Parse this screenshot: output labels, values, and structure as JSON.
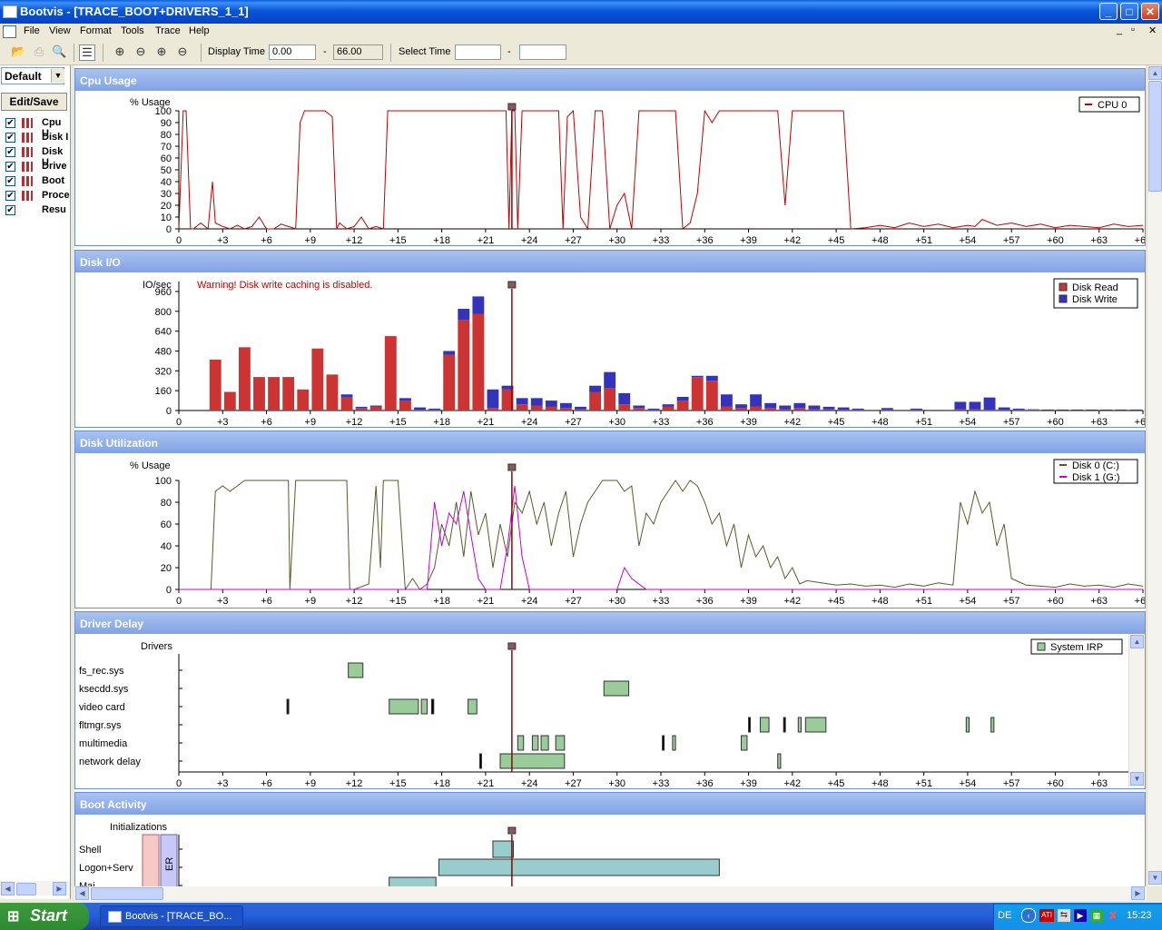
{
  "window": {
    "title": "Bootvis - [TRACE_BOOT+DRIVERS_1_1]",
    "min": "_",
    "max": "□",
    "close": "✕"
  },
  "menu": [
    "File",
    "View",
    "Format",
    "Tools",
    "Trace",
    "Help"
  ],
  "toolbar": {
    "display_time_label": "Display Time",
    "display_time_start": "0.00",
    "display_time_sep": "-",
    "display_time_end": "66.00",
    "select_time_label": "Select Time",
    "select_time_start": "",
    "select_time_sep": "-",
    "select_time_end": ""
  },
  "left": {
    "view_select": "Default",
    "edit_save": "Edit/Save",
    "items": [
      {
        "label": "Cpu U",
        "checked": true
      },
      {
        "label": "Disk I",
        "checked": true
      },
      {
        "label": "Disk U",
        "checked": true
      },
      {
        "label": "Drive",
        "checked": true
      },
      {
        "label": "Boot",
        "checked": true
      },
      {
        "label": "Proce",
        "checked": true
      },
      {
        "label": "Resu",
        "checked": true
      }
    ]
  },
  "colors": {
    "cpu": "#C00000",
    "disk_read": "#CC3333",
    "disk_write": "#3333BB",
    "disk0": "#5A5A2A",
    "disk1": "#CC00CC",
    "driver_box": "#99CC99",
    "boot_box": "#99CCCC",
    "cursor": "#990000"
  },
  "x_ticks": [
    "0",
    "+3",
    "+6",
    "+9",
    "+12",
    "+15",
    "+18",
    "+21",
    "+24",
    "+27",
    "+30",
    "+33",
    "+36",
    "+39",
    "+42",
    "+45",
    "+48",
    "+51",
    "+54",
    "+57",
    "+60",
    "+63",
    "+66"
  ],
  "cursor_time": 22.8,
  "panels": {
    "cpu": {
      "title": "Cpu Usage",
      "ylabel": "% Usage",
      "legend": [
        "CPU 0"
      ],
      "y_ticks": [
        "0",
        "10",
        "20",
        "30",
        "40",
        "50",
        "60",
        "70",
        "80",
        "90",
        "100"
      ]
    },
    "diskio": {
      "title": "Disk I/O",
      "ylabel": "IO/sec",
      "warning": "Warning!  Disk write caching is disabled.",
      "legend": [
        "Disk Read",
        "Disk Write"
      ],
      "y_ticks": [
        "0",
        "160",
        "320",
        "480",
        "640",
        "800",
        "960"
      ]
    },
    "diskutil": {
      "title": "Disk Utilization",
      "ylabel": "% Usage",
      "legend": [
        "Disk 0 (C:)",
        "Disk 1 (G:)"
      ],
      "y_ticks": [
        "0",
        "20",
        "40",
        "60",
        "80",
        "100"
      ]
    },
    "driver": {
      "title": "Driver Delay",
      "ylabel": "Drivers",
      "legend": [
        "System IRP"
      ],
      "rows": [
        "fs_rec.sys",
        "ksecdd.sys",
        "video card",
        "fltmgr.sys",
        "multimedia",
        "network delay"
      ]
    },
    "boot": {
      "title": "Boot Activity",
      "ylabel": "Initializations",
      "rows": [
        "Shell",
        "Logon+Serv",
        "Mai"
      ],
      "er_label": "ER"
    }
  },
  "chart_data": [
    {
      "type": "line",
      "title": "Cpu Usage",
      "ylabel": "% Usage",
      "ylim": [
        0,
        100
      ],
      "xlim": [
        0,
        66
      ],
      "series": [
        {
          "name": "CPU 0",
          "x": [
            0,
            0.3,
            0.5,
            0.8,
            1,
            1.5,
            2,
            2.3,
            2.5,
            3,
            3.5,
            4,
            4.5,
            5,
            5.5,
            6,
            6.5,
            7,
            7.5,
            8,
            8.3,
            8.6,
            9,
            9.5,
            10,
            10.5,
            10.8,
            11,
            11.5,
            12,
            12.5,
            13,
            13.5,
            14,
            14.3,
            14.6,
            15,
            16,
            17,
            18,
            19,
            20,
            21,
            22,
            22.4,
            22.6,
            22.8,
            23,
            23.2,
            23.5,
            24,
            25,
            26,
            26.3,
            26.6,
            27,
            27.5,
            28,
            28.5,
            29,
            29.5,
            30,
            30.5,
            31,
            31.5,
            32,
            33,
            34,
            34.5,
            35,
            35.5,
            36,
            36.5,
            37,
            37.5,
            38,
            39,
            40,
            41,
            41.5,
            42,
            43,
            44,
            45,
            45.5,
            46,
            47,
            48,
            49,
            50,
            51,
            52,
            53,
            54,
            54.5,
            55,
            56,
            57,
            58,
            59,
            60,
            61,
            62,
            63,
            64,
            65,
            66
          ],
          "y": [
            0,
            100,
            100,
            0,
            0,
            5,
            0,
            40,
            5,
            2,
            0,
            3,
            0,
            2,
            10,
            0,
            0,
            4,
            2,
            0,
            90,
            100,
            100,
            100,
            100,
            95,
            0,
            5,
            0,
            2,
            10,
            0,
            2,
            0,
            100,
            100,
            100,
            100,
            100,
            100,
            100,
            100,
            100,
            100,
            100,
            0,
            100,
            100,
            0,
            100,
            100,
            100,
            100,
            0,
            95,
            100,
            10,
            0,
            100,
            100,
            0,
            20,
            30,
            0,
            100,
            100,
            100,
            100,
            0,
            5,
            30,
            100,
            90,
            100,
            100,
            100,
            100,
            100,
            100,
            20,
            100,
            100,
            100,
            100,
            100,
            0,
            1,
            3,
            1,
            5,
            2,
            4,
            1,
            3,
            2,
            8,
            3,
            5,
            2,
            4,
            1,
            3,
            2,
            1,
            4,
            2,
            3
          ]
        }
      ]
    },
    {
      "type": "bar",
      "title": "Disk I/O",
      "ylabel": "IO/sec",
      "ylim": [
        0,
        1040
      ],
      "xlim": [
        0,
        66
      ],
      "categories": [
        2.5,
        3.5,
        4.5,
        5.5,
        6.5,
        7.5,
        8.5,
        9.5,
        10.5,
        11.5,
        12.5,
        13.5,
        14.5,
        15.5,
        16.5,
        17.5,
        18.5,
        19.5,
        20.5,
        21.5,
        22.5,
        23.5,
        24.5,
        25.5,
        26.5,
        27.5,
        28.5,
        29.5,
        30.5,
        31.5,
        32.5,
        33.5,
        34.5,
        35.5,
        36.5,
        37.5,
        38.5,
        39.5,
        40.5,
        41.5,
        42.5,
        43.5,
        44.5,
        45.5,
        46.5,
        48.5,
        50.5,
        53.5,
        54.5,
        55.5,
        56.5,
        57.5,
        58.5,
        59.5,
        60.5,
        61.5,
        62.5,
        63.5,
        64.5,
        65.5
      ],
      "series": [
        {
          "name": "Disk Read",
          "values": [
            410,
            150,
            510,
            270,
            270,
            270,
            170,
            500,
            290,
            110,
            20,
            30,
            600,
            80,
            5,
            5,
            450,
            730,
            780,
            20,
            170,
            50,
            40,
            30,
            20,
            10,
            150,
            180,
            50,
            20,
            5,
            30,
            80,
            270,
            240,
            30,
            20,
            30,
            20,
            10,
            20,
            10,
            10,
            5,
            5,
            5,
            5,
            10,
            10,
            5,
            5,
            5,
            5,
            3,
            3,
            3,
            3,
            3,
            3,
            3
          ]
        },
        {
          "name": "Disk Write",
          "values": [
            0,
            0,
            0,
            0,
            0,
            0,
            0,
            0,
            0,
            20,
            10,
            10,
            0,
            20,
            20,
            10,
            30,
            90,
            140,
            150,
            30,
            50,
            60,
            50,
            40,
            20,
            50,
            130,
            90,
            20,
            10,
            20,
            30,
            10,
            40,
            100,
            30,
            100,
            40,
            30,
            40,
            30,
            20,
            20,
            10,
            15,
            10,
            60,
            60,
            100,
            20,
            10,
            5,
            5,
            5,
            5,
            5,
            5,
            5,
            5
          ]
        }
      ]
    },
    {
      "type": "line",
      "title": "Disk Utilization",
      "ylabel": "% Usage",
      "ylim": [
        0,
        100
      ],
      "xlim": [
        0,
        66
      ],
      "series": [
        {
          "name": "Disk 0 (C:)",
          "x": [
            0,
            2.2,
            2.5,
            3,
            3.5,
            4,
            4.5,
            5,
            6,
            7,
            7.5,
            7.6,
            8,
            9,
            10,
            11,
            11.5,
            11.7,
            12,
            13,
            13.5,
            13.8,
            14,
            14.2,
            14.5,
            15,
            15.5,
            16,
            16.5,
            17,
            17.5,
            18,
            18.5,
            19,
            19.5,
            20,
            20.5,
            21,
            21.5,
            22,
            22.5,
            23,
            23.5,
            24,
            24.5,
            25,
            25.5,
            26,
            26.5,
            27,
            27.5,
            28,
            28.5,
            29,
            29.5,
            30,
            30.5,
            31,
            31.5,
            32,
            32.5,
            33,
            33.5,
            34,
            34.5,
            35,
            35.5,
            36,
            36.5,
            37,
            37.5,
            38,
            38.5,
            39,
            39.5,
            40,
            40.5,
            41,
            41.5,
            42,
            42.5,
            43,
            44,
            45,
            46,
            47,
            48,
            49,
            50,
            51,
            52,
            53,
            53.5,
            54,
            54.5,
            55,
            55.5,
            56,
            56.5,
            57,
            58,
            59,
            60,
            61,
            62,
            63,
            64,
            65,
            66
          ],
          "y": [
            0,
            0,
            90,
            95,
            90,
            95,
            100,
            100,
            100,
            100,
            100,
            0,
            100,
            100,
            100,
            100,
            100,
            0,
            0,
            5,
            95,
            20,
            100,
            100,
            100,
            100,
            0,
            10,
            0,
            5,
            20,
            60,
            40,
            80,
            30,
            90,
            50,
            70,
            20,
            60,
            30,
            80,
            70,
            90,
            60,
            80,
            40,
            70,
            90,
            30,
            60,
            80,
            90,
            100,
            100,
            100,
            90,
            95,
            40,
            70,
            60,
            80,
            90,
            100,
            90,
            100,
            95,
            80,
            60,
            70,
            40,
            60,
            20,
            50,
            30,
            40,
            20,
            30,
            10,
            20,
            5,
            8,
            6,
            4,
            5,
            3,
            4,
            2,
            5,
            3,
            6,
            4,
            80,
            60,
            90,
            70,
            80,
            40,
            60,
            10,
            4,
            3,
            2,
            5,
            3,
            4,
            2,
            5,
            3
          ]
        },
        {
          "name": "Disk 1 (G:)",
          "x": [
            0,
            17,
            17.5,
            18,
            18.5,
            19,
            19.5,
            20,
            20.5,
            21,
            22,
            22.5,
            23,
            23.5,
            24,
            25,
            30,
            30.5,
            31,
            32,
            66
          ],
          "y": [
            0,
            0,
            80,
            40,
            70,
            60,
            90,
            50,
            10,
            0,
            0,
            40,
            95,
            30,
            0,
            0,
            0,
            20,
            10,
            0,
            0
          ]
        }
      ]
    },
    {
      "type": "table",
      "title": "Driver Delay",
      "ylabel": "Drivers",
      "rows": [
        "fs_rec.sys",
        "ksecdd.sys",
        "video card",
        "fltmgr.sys",
        "multimedia",
        "network delay"
      ],
      "intervals": [
        [
          [
            11.6,
            12.6
          ]
        ],
        [
          [
            29.1,
            30.8
          ]
        ],
        [
          [
            7.4,
            7.45
          ],
          [
            14.4,
            16.4
          ],
          [
            16.6,
            17.0
          ],
          [
            17.3,
            17.45
          ],
          [
            19.8,
            20.4
          ]
        ],
        [
          [
            39,
            39.1
          ],
          [
            39.8,
            40.4
          ],
          [
            41.4,
            41.5
          ],
          [
            42.4,
            42.6
          ],
          [
            42.9,
            44.3
          ],
          [
            53.9,
            54.1
          ],
          [
            55.6,
            55.8
          ]
        ],
        [
          [
            23.2,
            23.6
          ],
          [
            24.2,
            24.6
          ],
          [
            24.8,
            25.3
          ],
          [
            25.8,
            26.4
          ],
          [
            33.1,
            33.2
          ],
          [
            33.8,
            34.0
          ],
          [
            38.5,
            38.9
          ]
        ],
        [
          [
            20.6,
            20.7
          ],
          [
            22,
            26.4
          ],
          [
            41,
            41.2
          ]
        ]
      ]
    }
  ],
  "taskbar": {
    "start": "Start",
    "task": "Bootvis - [TRACE_BO...",
    "lang": "DE",
    "clock": "15:23"
  }
}
